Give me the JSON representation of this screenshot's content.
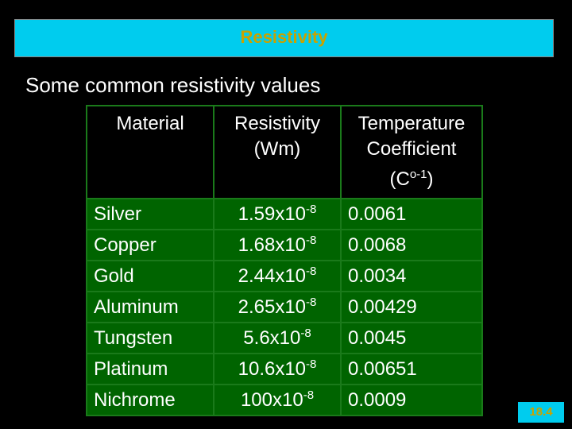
{
  "header": {
    "title": "Resistivity"
  },
  "subtitle": "Some common resistivity values",
  "table": {
    "columns": [
      {
        "lines": [
          "Material"
        ]
      },
      {
        "lines": [
          "Resistivity",
          "(Wm)"
        ]
      },
      {
        "lines": [
          "Temperature",
          "Coefficient"
        ],
        "unit": {
          "pre": "(C",
          "sup": "o-1",
          "post": ")"
        }
      }
    ],
    "rows": [
      [
        "Silver",
        {
          "base": "1.59x10",
          "exp": "-8"
        },
        "0.0061"
      ],
      [
        "Copper",
        {
          "base": "1.68x10",
          "exp": "-8"
        },
        "0.0068"
      ],
      [
        "Gold",
        {
          "base": "2.44x10",
          "exp": "-8"
        },
        "0.0034"
      ],
      [
        "Aluminum",
        {
          "base": "2.65x10",
          "exp": "-8"
        },
        "0.00429"
      ],
      [
        "Tungsten",
        {
          "base": "5.6x10",
          "exp": "-8"
        },
        "0.0045"
      ],
      [
        "Platinum",
        {
          "base": "10.6x10",
          "exp": "-8"
        },
        "0.00651"
      ],
      [
        "Nichrome",
        {
          "base": "100x10",
          "exp": "-8"
        },
        "0.0009"
      ]
    ]
  },
  "footer": {
    "page": "18.4"
  }
}
